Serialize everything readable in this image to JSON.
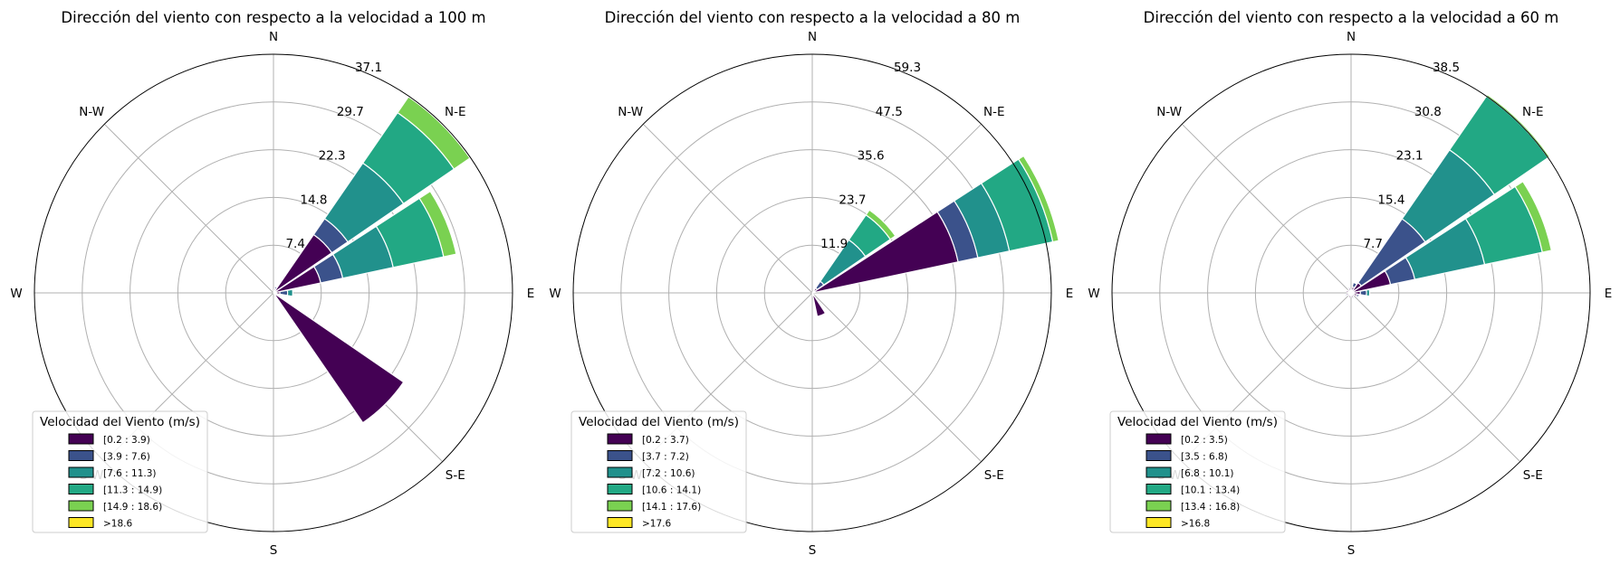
{
  "colors": {
    "bins": [
      "#440154",
      "#3b528b",
      "#21918c",
      "#22a884",
      "#7ad151",
      "#fde725"
    ],
    "grid": "#b0b0b0",
    "edge": "#ffffff"
  },
  "chart_data": [
    {
      "type": "windrose",
      "title": "Dirección del viento con respecto a la velocidad a 100 m",
      "direction_labels": [
        "N",
        "N-E",
        "E",
        "S-E",
        "S",
        "S-W",
        "W",
        "N-W"
      ],
      "radial_ticks": [
        "7.4",
        "14.8",
        "22.3",
        "29.7",
        "37.1"
      ],
      "rmax": 37.1,
      "legend_title": "Velocidad del Viento (m/s)",
      "legend_labels": [
        "[0.2 : 3.9)",
        "[3.9 : 7.6)",
        "[7.6 : 11.3)",
        "[11.3 : 14.9)",
        "[14.9 : 18.6)",
        ">18.6"
      ],
      "legend_placement": "lower-left",
      "sectors": [
        {
          "direction_deg": 45,
          "values": [
            11.0,
            14.0,
            24.5,
            34.0,
            37.0,
            37.1
          ]
        },
        {
          "direction_deg": 67.5,
          "values": [
            7.5,
            11.0,
            19.0,
            27.0,
            29.0,
            29.0
          ]
        },
        {
          "direction_deg": 22.5,
          "values": [
            0.7,
            1.0,
            1.1,
            1.1,
            1.1,
            1.1
          ]
        },
        {
          "direction_deg": 90,
          "values": [
            1.0,
            2.2,
            3.0,
            3.0,
            3.0,
            3.0
          ]
        },
        {
          "direction_deg": 135,
          "values": [
            24.5,
            24.5,
            24.5,
            24.5,
            24.5,
            24.5
          ]
        },
        {
          "direction_deg": 112.5,
          "values": [
            0.5,
            0.7,
            0.7,
            0.7,
            0.7,
            0.7
          ]
        }
      ]
    },
    {
      "type": "windrose",
      "title": "Dirección del viento con respecto a la velocidad a 80 m",
      "direction_labels": [
        "N",
        "N-E",
        "E",
        "S-E",
        "S",
        "S-W",
        "W",
        "N-W"
      ],
      "radial_ticks": [
        "11.9",
        "23.7",
        "35.6",
        "47.5",
        "59.3"
      ],
      "rmax": 59.3,
      "legend_title": "Velocidad del Viento (m/s)",
      "legend_labels": [
        "[0.2 : 3.7)",
        "[3.7 : 7.2)",
        "[7.2 : 10.6)",
        "[10.6 : 14.1)",
        "[14.1 : 17.6)",
        ">17.6"
      ],
      "legend_placement": "lower-left",
      "sectors": [
        {
          "direction_deg": 67.5,
          "values": [
            37.0,
            42.0,
            50.0,
            61.0,
            62.5,
            62.5
          ]
        },
        {
          "direction_deg": 45,
          "values": [
            1.5,
            3.5,
            16.0,
            23.5,
            25.0,
            25.0
          ]
        },
        {
          "direction_deg": 157.5,
          "values": [
            6.0,
            6.0,
            6.0,
            6.0,
            6.0,
            6.0
          ]
        }
      ]
    },
    {
      "type": "windrose",
      "title": "Dirección del viento con respecto a la velocidad a 60 m",
      "direction_labels": [
        "N",
        "N-E",
        "E",
        "S-E",
        "S",
        "S-W",
        "W",
        "N-W"
      ],
      "radial_ticks": [
        "7.7",
        "15.4",
        "23.1",
        "30.8",
        "38.5"
      ],
      "rmax": 38.5,
      "legend_title": "Velocidad del Viento (m/s)",
      "legend_labels": [
        "[0.2 : 3.5)",
        "[3.5 : 6.8)",
        "[6.8 : 10.1)",
        "[10.1 : 13.4)",
        "[13.4 : 16.8)",
        ">16.8"
      ],
      "legend_placement": "lower-left",
      "sectors": [
        {
          "direction_deg": 45,
          "values": [
            2.0,
            14.5,
            28.0,
            38.5,
            38.8,
            38.8
          ]
        },
        {
          "direction_deg": 67.5,
          "values": [
            6.5,
            10.5,
            22.0,
            31.5,
            33.0,
            33.0
          ]
        },
        {
          "direction_deg": 22.5,
          "values": [
            1.0,
            1.7,
            1.7,
            1.7,
            1.7,
            1.7
          ]
        },
        {
          "direction_deg": 90,
          "values": [
            1.5,
            2.5,
            3.0,
            3.0,
            3.0,
            3.0
          ]
        },
        {
          "direction_deg": 112.5,
          "values": [
            1.0,
            1.3,
            1.3,
            1.3,
            1.3,
            1.3
          ]
        },
        {
          "direction_deg": 157.5,
          "values": [
            0.8,
            1.0,
            1.0,
            1.0,
            1.0,
            1.0
          ]
        },
        {
          "direction_deg": 337.5,
          "values": [
            0.8,
            1.0,
            1.0,
            1.0,
            1.0,
            1.0
          ]
        },
        {
          "direction_deg": 202.5,
          "values": [
            0.8,
            0.8,
            0.8,
            0.8,
            0.8,
            0.8
          ]
        },
        {
          "direction_deg": 247.5,
          "values": [
            0.8,
            1.0,
            1.0,
            1.0,
            1.0,
            1.0
          ]
        },
        {
          "direction_deg": 292.5,
          "values": [
            0.8,
            0.8,
            0.8,
            0.8,
            0.8,
            0.8
          ]
        }
      ]
    }
  ]
}
